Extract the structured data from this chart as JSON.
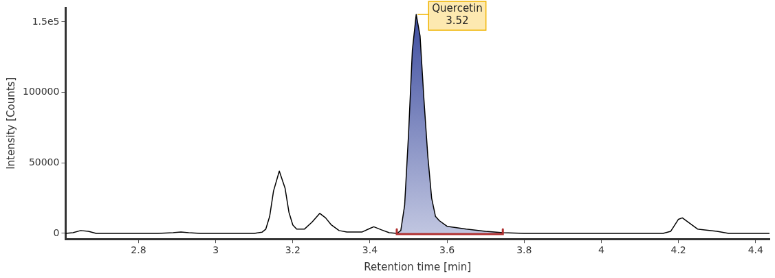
{
  "chart_data": {
    "type": "line",
    "xlabel": "Retention time [min]",
    "ylabel": "Intensity [Counts]",
    "xlim": [
      2.611,
      4.436
    ],
    "ylim": [
      -4000,
      160000
    ],
    "xticks": [
      2.8,
      3,
      3.2,
      3.4,
      3.6,
      3.8,
      4,
      4.2,
      4.4
    ],
    "yticks": [
      0,
      50000,
      100000,
      {
        "value": 150000,
        "label": "1.5e5"
      }
    ],
    "grid": false,
    "legend": false,
    "marker": "none",
    "line_style": "solid",
    "series": [
      {
        "type": "area",
        "color": "#3a4a9e",
        "x": [
          3.47,
          3.48,
          3.49,
          3.5,
          3.51,
          3.52,
          3.53,
          3.54,
          3.55,
          3.56,
          3.57,
          3.58,
          3.6,
          3.65,
          3.7,
          3.745
        ],
        "values": [
          0,
          2000,
          20000,
          70000,
          130000,
          155300,
          140000,
          95000,
          55000,
          25000,
          12000,
          9000,
          5000,
          3000,
          1500,
          500
        ]
      },
      {
        "color": "#000000",
        "x": [
          2.611,
          2.63,
          2.65,
          2.67,
          2.69,
          2.85,
          2.89,
          2.91,
          2.93,
          2.96,
          3.1,
          3.12,
          3.13,
          3.14,
          3.15,
          3.165,
          3.18,
          3.19,
          3.2,
          3.21,
          3.23,
          3.25,
          3.27,
          3.285,
          3.3,
          3.32,
          3.34,
          3.38,
          3.4,
          3.41,
          3.43,
          3.45,
          3.47,
          3.48,
          3.49,
          3.5,
          3.51,
          3.52,
          3.53,
          3.54,
          3.55,
          3.56,
          3.57,
          3.58,
          3.6,
          3.65,
          3.7,
          3.745,
          3.8,
          4.16,
          4.18,
          4.2,
          4.21,
          4.23,
          4.25,
          4.3,
          4.33,
          4.436
        ],
        "values": [
          0,
          500,
          2000,
          1500,
          0,
          0,
          500,
          1000,
          500,
          0,
          0,
          800,
          3000,
          12000,
          30000,
          44200,
          32000,
          15000,
          6000,
          3000,
          3000,
          8000,
          14200,
          11000,
          6000,
          2000,
          1000,
          1000,
          3500,
          4700,
          2500,
          500,
          0,
          2000,
          20000,
          70000,
          130000,
          155300,
          140000,
          95000,
          55000,
          25000,
          12000,
          9000,
          5000,
          3000,
          1500,
          500,
          0,
          0,
          1500,
          10000,
          11000,
          7000,
          3000,
          1500,
          0,
          0
        ]
      }
    ],
    "annotations": [
      {
        "text": "Quercetin\n3.52",
        "x": 3.52,
        "y": 155300
      }
    ]
  }
}
